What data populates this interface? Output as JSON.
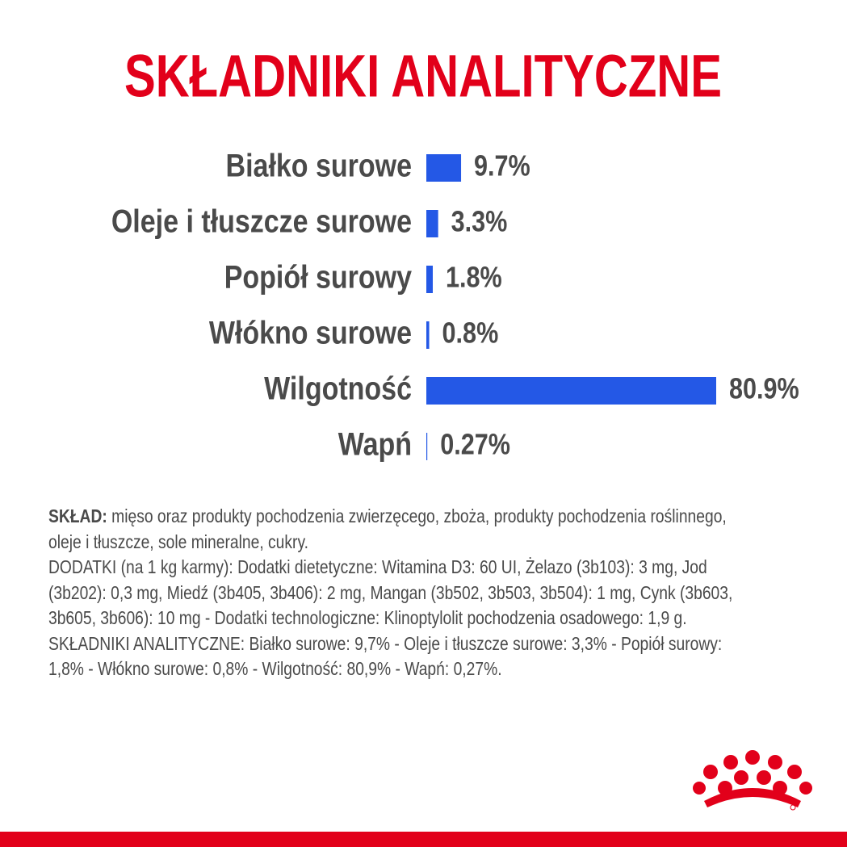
{
  "chart_data": {
    "type": "bar",
    "title": "SKŁADNIKI ANALITYCZNE",
    "categories": [
      "Białko surowe",
      "Oleje i tłuszcze surowe",
      "Popiół surowy",
      "Włókno surowe",
      "Wilgotność",
      "Wapń"
    ],
    "values": [
      9.7,
      3.3,
      1.8,
      0.8,
      80.9,
      0.27
    ],
    "value_labels": [
      "9.7%",
      "3.3%",
      "1.8%",
      "0.8%",
      "80.9%",
      "0.27%"
    ],
    "color": "#2458e6"
  },
  "composition": {
    "label": "SKŁAD:",
    "text": "mięso oraz produkty pochodzenia zwierzęcego, zboża, produkty pochodzenia roślinnego, oleje i tłuszcze, sole mineralne, cukry."
  },
  "additives": "DODATKI (na 1 kg karmy): Dodatki dietetyczne: Witamina D3: 60 UI, Żelazo (3b103): 3 mg, Jod (3b202): 0,3 mg, Miedź (3b405, 3b406): 2 mg, Mangan (3b502, 3b503, 3b504): 1 mg, Cynk (3b603, 3b605, 3b606): 10 mg - Dodatki technologiczne: Klinoptylolit pochodzenia osadowego: 1,9 g.",
  "analytical": "SKŁADNIKI ANALITYCZNE: Białko surowe: 9,7% - Oleje i tłuszcze surowe: 3,3% - Popiół surowy: 1,8% - Włókno surowe: 0,8% - Wilgotność: 80,9% - Wapń: 0,27%."
}
